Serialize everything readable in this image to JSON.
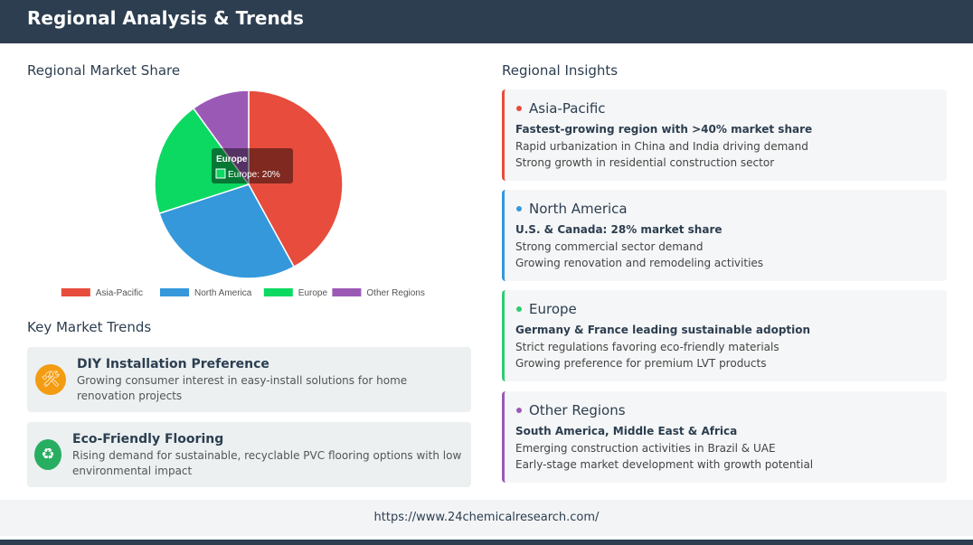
{
  "header": {
    "title": "Regional Analysis & Trends"
  },
  "market_share": {
    "title": "Regional Market Share"
  },
  "chart_data": {
    "type": "pie",
    "categories": [
      "Asia-Pacific",
      "North America",
      "Europe",
      "Other Regions"
    ],
    "values": [
      42,
      28,
      20,
      10
    ],
    "colors": [
      "#e74c3c",
      "#3498db",
      "#0cd962",
      "#9b59b6"
    ],
    "legend_position": "bottom",
    "tooltip": {
      "title": "Europe",
      "label": "Europe: 20%"
    }
  },
  "trends": {
    "title": "Key Market Trends",
    "items": [
      {
        "icon": "tools-icon",
        "icon_glyph": "🛠",
        "color": "#f39c12",
        "title": "DIY Installation Preference",
        "desc": "Growing consumer interest in easy-install solutions for home renovation projects"
      },
      {
        "icon": "recycle-icon",
        "icon_glyph": "♻",
        "color": "#27ae60",
        "title": "Eco-Friendly Flooring",
        "desc": "Rising demand for sustainable, recyclable PVC flooring options with low environmental impact"
      }
    ]
  },
  "insights": {
    "title": "Regional Insights",
    "items": [
      {
        "region": "Asia-Pacific",
        "color": "#e74c3c",
        "highlight": "Fastest-growing region with >40% market share",
        "lines": [
          "Rapid urbanization in China and India driving demand",
          "Strong growth in residential construction sector"
        ]
      },
      {
        "region": "North America",
        "color": "#3498db",
        "highlight": "U.S. & Canada: 28% market share",
        "lines": [
          "Strong commercial sector demand",
          "Growing renovation and remodeling activities"
        ]
      },
      {
        "region": "Europe",
        "color": "#2ecc71",
        "highlight": "Germany & France leading sustainable adoption",
        "lines": [
          "Strict regulations favoring eco-friendly materials",
          "Growing preference for premium LVT products"
        ]
      },
      {
        "region": "Other Regions",
        "color": "#9b59b6",
        "highlight": "South America, Middle East & Africa",
        "lines": [
          "Emerging construction activities in Brazil & UAE",
          "Early-stage market development with growth potential"
        ]
      }
    ]
  },
  "footer": {
    "url": "https://www.24chemicalresearch.com/"
  }
}
